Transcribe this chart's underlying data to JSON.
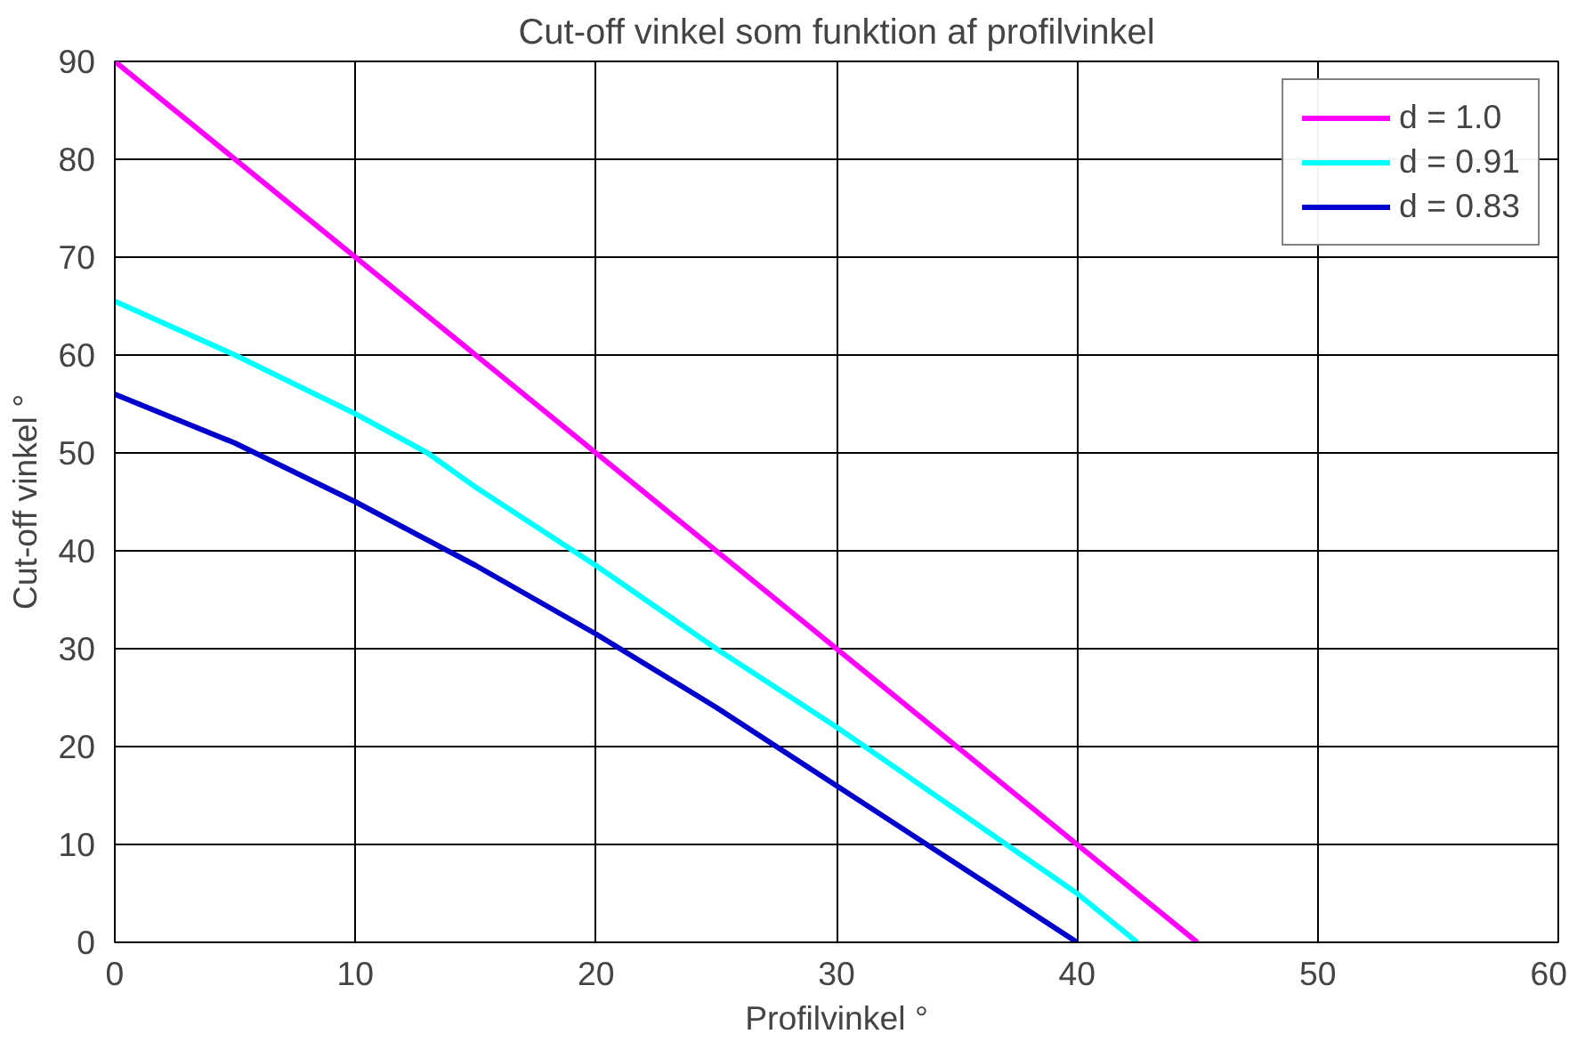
{
  "chart_data": {
    "type": "line",
    "title": "Cut-off vinkel som funktion af profilvinkel",
    "xlabel": "Profilvinkel °",
    "ylabel": "Cut-off vinkel °",
    "xlim": [
      0,
      60
    ],
    "xticks": [
      0,
      10,
      20,
      30,
      40,
      50,
      60
    ],
    "ylim": [
      0,
      90
    ],
    "yticks": [
      0,
      10,
      20,
      30,
      40,
      50,
      60,
      70,
      80,
      90
    ],
    "grid": true,
    "legend": "top right",
    "marker": "none",
    "line_style": "solid",
    "series": [
      {
        "name": "d = 1.0",
        "color": "#ff00ff",
        "x": [
          0,
          5,
          10,
          15,
          20,
          25,
          30,
          35,
          40,
          45
        ],
        "values": [
          90,
          80,
          70,
          60,
          50,
          40,
          30,
          20,
          10,
          0
        ]
      },
      {
        "name": "d = 0.91",
        "color": "#00ffff",
        "x": [
          0,
          5,
          10,
          13,
          15,
          20,
          25,
          30,
          35,
          40,
          42.5
        ],
        "values": [
          65.5,
          60,
          54,
          50,
          46.5,
          38.5,
          30,
          22,
          13.5,
          5,
          0
        ]
      },
      {
        "name": "d = 0.83",
        "color": "#0000cc",
        "x": [
          0,
          5,
          10,
          15,
          20,
          25,
          30,
          35,
          40
        ],
        "values": [
          56,
          51,
          45,
          38.5,
          31.5,
          24,
          16,
          8,
          0
        ]
      }
    ]
  }
}
